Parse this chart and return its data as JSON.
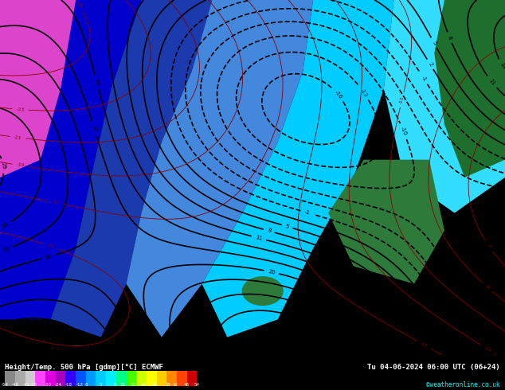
{
  "title_left": "Height/Temp. 500 hPa [gdmp][°C] ECMWF",
  "title_right": "Tu 04-06-2024 06:00 UTC (06+24)",
  "credit": "©weatheronline.co.uk",
  "colorbar_values": [
    -54,
    -48,
    -42,
    -38,
    -30,
    -24,
    -18,
    -12,
    -8,
    0,
    8,
    12,
    18,
    24,
    30,
    38,
    42,
    48,
    54
  ],
  "colorbar_colors": [
    "#606060",
    "#808080",
    "#a0a0a0",
    "#c0c0c0",
    "#ff00ff",
    "#cc00cc",
    "#9900aa",
    "#0000ff",
    "#0033ff",
    "#0066ff",
    "#00aaff",
    "#00ccff",
    "#00ffff",
    "#00ffcc",
    "#00ff00",
    "#ccff00",
    "#ffff00",
    "#ffcc00",
    "#ff9900",
    "#ff6600",
    "#ff3300",
    "#cc0000",
    "#990000"
  ],
  "bg_color": "#00bfff",
  "bottom_bar_color": "#000000",
  "bottom_bar_height": 0.07,
  "fig_width": 6.34,
  "fig_height": 4.9,
  "map_bg_colors": {
    "deep_blue": "#0000cd",
    "blue": "#1e40af",
    "light_blue": "#00bfff",
    "cyan": "#00e5ff",
    "pink": "#ff69b4",
    "magenta": "#ff00ff",
    "teal_green": "#2d8a4e",
    "dark_green": "#1a5c2e"
  }
}
